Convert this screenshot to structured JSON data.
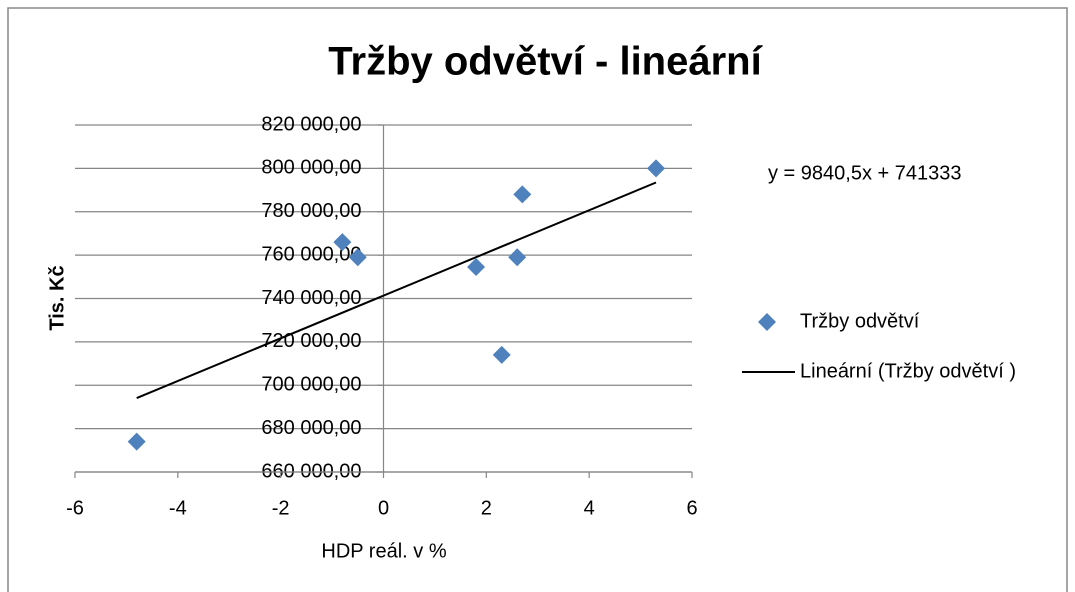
{
  "chart_data": {
    "type": "scatter",
    "title": "Tržby odvětví - lineární",
    "x_label": "HDP reál. v %",
    "y_label": "Tis. Kč",
    "x": [
      -4.8,
      -0.8,
      -0.5,
      1.8,
      2.3,
      2.6,
      2.7,
      5.3
    ],
    "series": [
      {
        "name": "Tržby odvětví",
        "color": "#4f81bd",
        "values": [
          674000,
          766000,
          759000,
          754500,
          714000,
          759000,
          788000,
          800000
        ]
      }
    ],
    "trendline": {
      "name": "Lineární (Tržby odvětví )",
      "label": "y = 9840,5x + 741333",
      "slope": 9840.5,
      "intercept": 741333,
      "color": "#000000"
    },
    "xlim": [
      -6,
      6
    ],
    "xticks": [
      -6,
      -4,
      -2,
      0,
      2,
      4,
      6
    ],
    "ylim": [
      660000,
      820000
    ],
    "yticks": [
      {
        "value": 660000,
        "label": "660 000,00"
      },
      {
        "value": 680000,
        "label": "680 000,00"
      },
      {
        "value": 700000,
        "label": "700 000,00"
      },
      {
        "value": 720000,
        "label": "720 000,00"
      },
      {
        "value": 740000,
        "label": "740 000,00"
      },
      {
        "value": 760000,
        "label": "760 000,00"
      },
      {
        "value": 780000,
        "label": "780 000,00"
      },
      {
        "value": 800000,
        "label": "800 000,00"
      },
      {
        "value": 820000,
        "label": "820 000,00"
      }
    ],
    "grid": true,
    "legend": "right"
  }
}
